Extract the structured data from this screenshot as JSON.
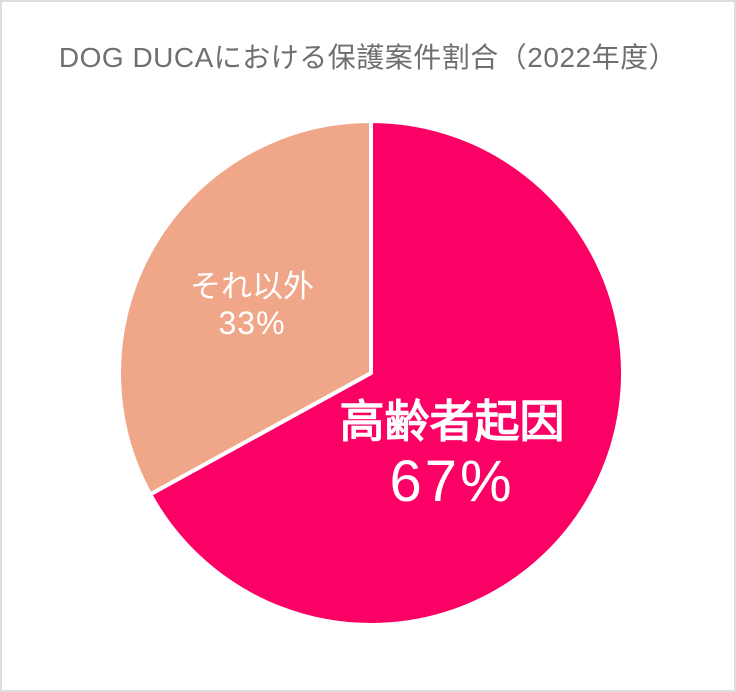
{
  "title": "DOG DUCAにおける保護案件割合（2022年度）",
  "colors": {
    "major_slice": "#fb0166",
    "minor_slice": "#efa689",
    "separator": "#ffffff",
    "title_text": "#6f6f6f",
    "label_text": "#ffffff",
    "card_border": "#dcdcdc",
    "background": "#ffffff"
  },
  "chart_data": {
    "type": "pie",
    "title": "DOG DUCAにおける保護案件割合（2022年度）",
    "start_angle_deg": 0,
    "direction": "clockwise",
    "legend": "none",
    "labels_inside": true,
    "separator_stroke": "#ffffff",
    "slices": [
      {
        "label": "高齢者起因",
        "value": 67,
        "pct_label": "67%",
        "color": "#fb0166"
      },
      {
        "label": "それ以外",
        "value": 33,
        "pct_label": "33%",
        "color": "#efa689"
      }
    ]
  }
}
